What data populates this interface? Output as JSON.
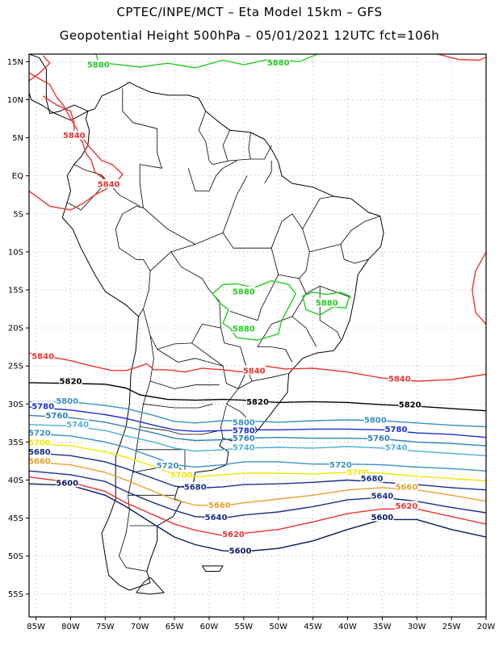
{
  "header": {
    "title_line1": "CPTEC/INPE/MCT  –   Eta Model 15km  –  GFS",
    "title_line2": "Geopotential Height 500hPa – 05/01/2021 12UTC fct=106h"
  },
  "axes": {
    "lon_labels": [
      "85W",
      "80W",
      "75W",
      "70W",
      "65W",
      "60W",
      "55W",
      "50W",
      "45W",
      "40W",
      "35W",
      "30W",
      "25W",
      "20W"
    ],
    "lat_labels": [
      "15N",
      "10N",
      "5N",
      "EQ",
      "5S",
      "10S",
      "15S",
      "20S",
      "25S",
      "30S",
      "35S",
      "40S",
      "45S",
      "50S",
      "55S"
    ],
    "lon_values": [
      -85,
      -80,
      -75,
      -70,
      -65,
      -60,
      -55,
      -50,
      -45,
      -40,
      -35,
      -30,
      -25,
      -20
    ],
    "lat_values": [
      15,
      10,
      5,
      0,
      -5,
      -10,
      -15,
      -20,
      -25,
      -30,
      -35,
      -40,
      -45,
      -50,
      -55
    ],
    "lon_range": [
      -86,
      -20
    ],
    "lat_range": [
      16,
      -58
    ],
    "grid": "dotted"
  },
  "contours": [
    {
      "value": "5880",
      "color": "#22cc22",
      "labels": [
        {
          "text": "5880",
          "lon": -76,
          "lat": 14.5
        },
        {
          "text": "5880",
          "lon": -50,
          "lat": 14.8
        },
        {
          "text": "5880",
          "lon": -55,
          "lat": -15.3
        },
        {
          "text": "5880",
          "lon": -43,
          "lat": -16.8
        },
        {
          "text": "5880",
          "lon": -55,
          "lat": -20.2
        }
      ]
    },
    {
      "value": "5840",
      "color": "#ee3333",
      "labels": [
        {
          "text": "5840",
          "lon": -79.5,
          "lat": 5.2
        },
        {
          "text": "5840",
          "lon": -74.5,
          "lat": -1.2
        },
        {
          "text": "5840",
          "lon": -84,
          "lat": -23.8
        },
        {
          "text": "5840",
          "lon": -53.5,
          "lat": -25.7
        },
        {
          "text": "5840",
          "lon": -32.5,
          "lat": -26.8
        }
      ]
    },
    {
      "value": "5820",
      "color": "#000000",
      "labels": [
        {
          "text": "5820",
          "lon": -80,
          "lat": -27.1
        },
        {
          "text": "5820",
          "lon": -53,
          "lat": -29.8
        },
        {
          "text": "5820",
          "lon": -31,
          "lat": -30.2
        }
      ]
    },
    {
      "value": "5800",
      "color": "#3a8fc6",
      "labels": [
        {
          "text": "5800",
          "lon": -80.5,
          "lat": -29.7
        },
        {
          "text": "5800",
          "lon": -55,
          "lat": -32.5
        },
        {
          "text": "5800",
          "lon": -36,
          "lat": -32.2
        }
      ]
    },
    {
      "value": "5780",
      "color": "#1a2fd0",
      "labels": [
        {
          "text": "5780",
          "lon": -84,
          "lat": -30.4
        },
        {
          "text": "5780",
          "lon": -55,
          "lat": -33.6
        },
        {
          "text": "5780",
          "lon": -33,
          "lat": -33.4
        }
      ]
    },
    {
      "value": "5760",
      "color": "#2d7fb8",
      "labels": [
        {
          "text": "5760",
          "lon": -82,
          "lat": -31.6
        },
        {
          "text": "5760",
          "lon": -55,
          "lat": -34.6
        },
        {
          "text": "5760",
          "lon": -35.5,
          "lat": -34.6
        }
      ]
    },
    {
      "value": "5740",
      "color": "#4fb0d8",
      "labels": [
        {
          "text": "5740",
          "lon": -79,
          "lat": -32.8
        },
        {
          "text": "5740",
          "lon": -55,
          "lat": -35.8
        },
        {
          "text": "5740",
          "lon": -33,
          "lat": -35.8
        }
      ]
    },
    {
      "value": "5720",
      "color": "#3a8fc6",
      "labels": [
        {
          "text": "5720",
          "lon": -84.5,
          "lat": -33.9
        },
        {
          "text": "5720",
          "lon": -66,
          "lat": -38.2
        },
        {
          "text": "5720",
          "lon": -41,
          "lat": -38.1
        }
      ]
    },
    {
      "value": "5700",
      "color": "#f2e600",
      "labels": [
        {
          "text": "5700",
          "lon": -84.5,
          "lat": -35.2
        },
        {
          "text": "5700",
          "lon": -64,
          "lat": -39.4
        },
        {
          "text": "5700",
          "lon": -38.5,
          "lat": -39.1
        }
      ]
    },
    {
      "value": "5680",
      "color": "#1a2f8a",
      "labels": [
        {
          "text": "5680",
          "lon": -84.5,
          "lat": -36.4
        },
        {
          "text": "5680",
          "lon": -62,
          "lat": -41.0
        },
        {
          "text": "5680",
          "lon": -36.5,
          "lat": -39.9
        }
      ]
    },
    {
      "value": "5660",
      "color": "#e8a030",
      "labels": [
        {
          "text": "5660",
          "lon": -84.5,
          "lat": -37.6
        },
        {
          "text": "5660",
          "lon": -58.5,
          "lat": -43.4
        },
        {
          "text": "5660",
          "lon": -31.5,
          "lat": -41.0
        }
      ]
    },
    {
      "value": "5640",
      "color": "#1a2f8a",
      "labels": [
        {
          "text": "5640",
          "lon": -59,
          "lat": -45.0
        },
        {
          "text": "5640",
          "lon": -35,
          "lat": -42.2
        }
      ]
    },
    {
      "value": "5620",
      "color": "#ee3333",
      "labels": [
        {
          "text": "5620",
          "lon": -56.5,
          "lat": -47.2
        },
        {
          "text": "5620",
          "lon": -31.5,
          "lat": -43.5
        }
      ]
    },
    {
      "value": "5600",
      "color": "#0a1a66",
      "labels": [
        {
          "text": "5600",
          "lon": -80.5,
          "lat": -40.5
        },
        {
          "text": "5600",
          "lon": -55.5,
          "lat": -49.4
        },
        {
          "text": "5600",
          "lon": -35,
          "lat": -45.0
        }
      ]
    }
  ]
}
